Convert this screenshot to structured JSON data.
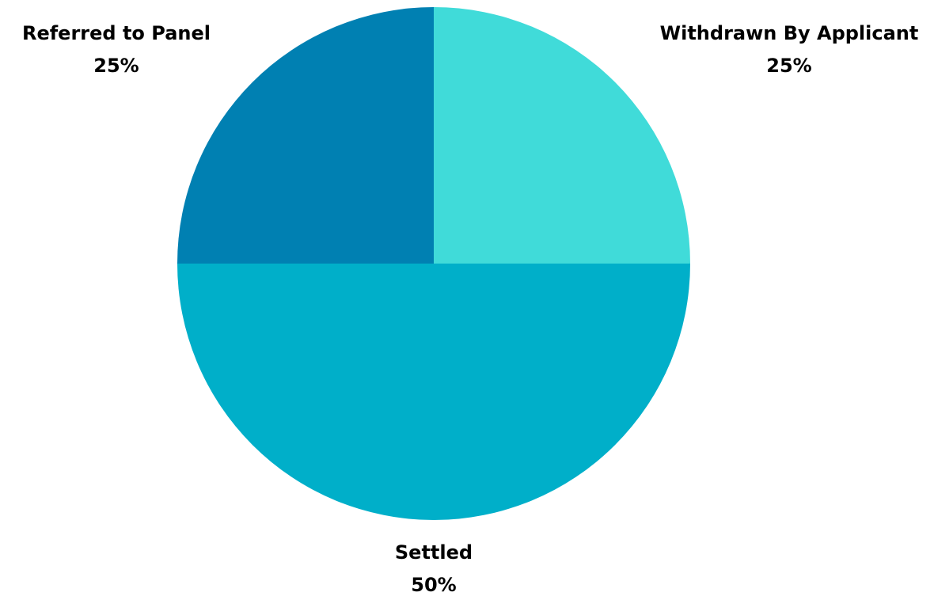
{
  "chart_data": {
    "type": "pie",
    "slices": [
      {
        "label": "Withdrawn By Applicant",
        "value": 25,
        "value_label": "25%",
        "color": "#40DBD9"
      },
      {
        "label": "Settled",
        "value": 50,
        "value_label": "50%",
        "color": "#00AFC9"
      },
      {
        "label": "Referred to Panel",
        "value": 25,
        "value_label": "25%",
        "color": "#0080B2"
      }
    ],
    "start_angle": "12 o'clock",
    "direction": "clockwise",
    "legend": "none"
  }
}
